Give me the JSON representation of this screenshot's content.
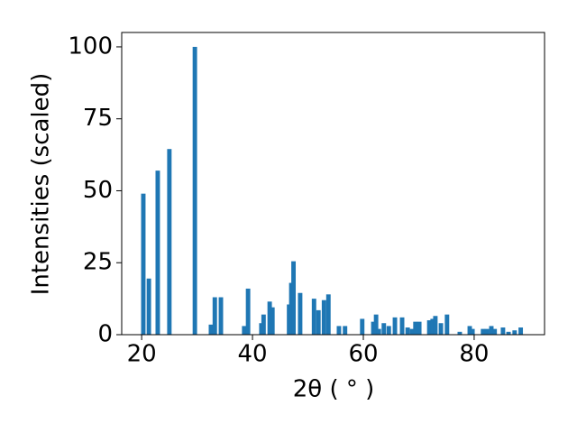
{
  "chart_data": {
    "type": "bar",
    "xlabel": "2θ ( ° )",
    "ylabel": "Intensities (scaled)",
    "color": "#1f77b4",
    "x": [
      20.3,
      21.3,
      22.9,
      25.0,
      29.6,
      32.5,
      33.2,
      34.3,
      38.5,
      39.2,
      41.6,
      42.0,
      43.1,
      43.6,
      46.6,
      47.0,
      47.4,
      48.6,
      51.1,
      51.9,
      52.9,
      53.7,
      55.6,
      56.7,
      59.8,
      61.8,
      62.3,
      62.8,
      63.7,
      64.6,
      65.7,
      67.0,
      68.0,
      68.8,
      69.4,
      70.1,
      71.9,
      72.5,
      73.0,
      74.0,
      75.1,
      77.4,
      79.2,
      79.7,
      81.6,
      82.3,
      83.1,
      83.7,
      85.2,
      86.2,
      87.3,
      88.4
    ],
    "values": [
      49,
      19.5,
      57,
      64.5,
      100,
      3.5,
      13,
      13,
      3,
      16,
      4,
      7,
      11.5,
      9.5,
      10.5,
      18,
      25.5,
      14.5,
      12.5,
      8.5,
      12,
      14,
      3,
      3,
      5.5,
      4.5,
      7,
      2,
      4,
      3,
      6,
      6,
      2.5,
      2,
      4.5,
      4.5,
      5,
      5.5,
      6.5,
      4,
      7,
      1,
      3,
      2,
      2,
      2,
      3,
      2,
      2.5,
      1,
      1.5,
      2.5
    ],
    "xlim": [
      16.4,
      92.7
    ],
    "ylim": [
      0,
      105
    ],
    "xticks": [
      20,
      40,
      60,
      80
    ],
    "yticks": [
      0,
      25,
      50,
      75,
      100
    ]
  }
}
